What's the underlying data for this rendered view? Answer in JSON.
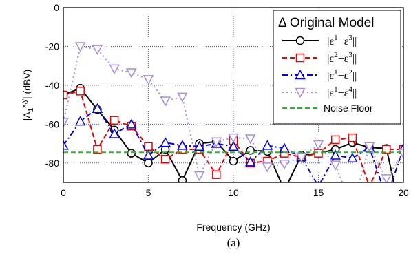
{
  "chart_data": {
    "type": "line",
    "xlabel": "Frequency (GHz)",
    "ylabel": "|Δ1x,y| (dBV)",
    "ylabel_parts": {
      "main": "|Δ",
      "sub": "1",
      "sup": "x,y",
      "tail": "| (dBV)"
    },
    "caption": "(a)",
    "xlim": [
      0,
      20
    ],
    "ylim": [
      -90,
      0
    ],
    "x_ticks": [
      0,
      5,
      10,
      15,
      20
    ],
    "y_ticks": [
      0,
      -20,
      -40,
      -60,
      -80
    ],
    "grid": true,
    "legend": {
      "title": "Δ Original Model",
      "placement": "top-right"
    },
    "x": [
      0,
      1,
      2,
      3,
      4,
      5,
      6,
      7,
      8,
      9,
      10,
      11,
      12,
      13,
      14,
      15,
      16,
      17,
      18,
      19,
      20
    ],
    "series": [
      {
        "name": "||ε1−ε3||",
        "label_parts": [
          "ε",
          "1",
          "−ε",
          "3"
        ],
        "color": "#000000",
        "marker": "circle",
        "dash": "solid",
        "values": [
          -45,
          -41.5,
          -52.5,
          -63,
          -75,
          -80,
          -73,
          -89,
          -70,
          -69,
          -79,
          -73.5,
          -74,
          -94,
          -76,
          -75,
          -73,
          -69.5,
          -72,
          -72.5,
          -112
        ]
      },
      {
        "name": "||ε2−ε3||",
        "label_parts": [
          "ε",
          "2",
          "−ε",
          "3"
        ],
        "color": "#ee0000",
        "marker": "square",
        "dash": "dash",
        "values": [
          -45,
          -43,
          -73,
          -58,
          -61,
          -71.5,
          -78,
          -73,
          -73,
          -86,
          -68.5,
          -80,
          -79,
          -75,
          -77,
          -75,
          -68,
          -67,
          -92,
          -73,
          -73
        ]
      },
      {
        "name": "||ε1−ε2||",
        "label_parts": [
          "ε",
          "1",
          "−ε",
          "2"
        ],
        "color": "#0000ee",
        "marker": "triangle-up",
        "dash": "dashdot",
        "values": [
          -71,
          -58.5,
          -52,
          -65,
          -60,
          -76,
          -69.5,
          -71,
          -71.5,
          -70,
          -71.5,
          -79.5,
          -71,
          -72.5,
          -77,
          -92,
          -76,
          -77.5,
          -72,
          -98,
          -72.5
        ]
      },
      {
        "name": "||ε1−ε4||",
        "label_parts": [
          "ε",
          "1",
          "−ε",
          "4"
        ],
        "color": "#a98be0",
        "marker": "triangle-down",
        "dash": "dot",
        "values": [
          -59,
          -20,
          -21.5,
          -31.5,
          -33.5,
          -37,
          -48,
          -46,
          -86.5,
          -69,
          -67,
          -67.5,
          -82,
          -80.5,
          -77,
          -70.5,
          -81,
          -103,
          -71.5,
          -88,
          -75
        ]
      },
      {
        "name": "Noise Floor",
        "label_parts": [
          "Noise Floor"
        ],
        "color": "#22bb22",
        "marker": "none",
        "dash": "dash",
        "values": [
          -74.5,
          -74.5,
          -74.5,
          -74.5,
          -74.5,
          -74.5,
          -74.5,
          -74.5,
          -74.5,
          -74.5,
          -74.5,
          -74.5,
          -74.5,
          -74.5,
          -74.5,
          -74.5,
          -74.5,
          -74.5,
          -74.5,
          -74.5,
          -74.5
        ]
      }
    ]
  }
}
